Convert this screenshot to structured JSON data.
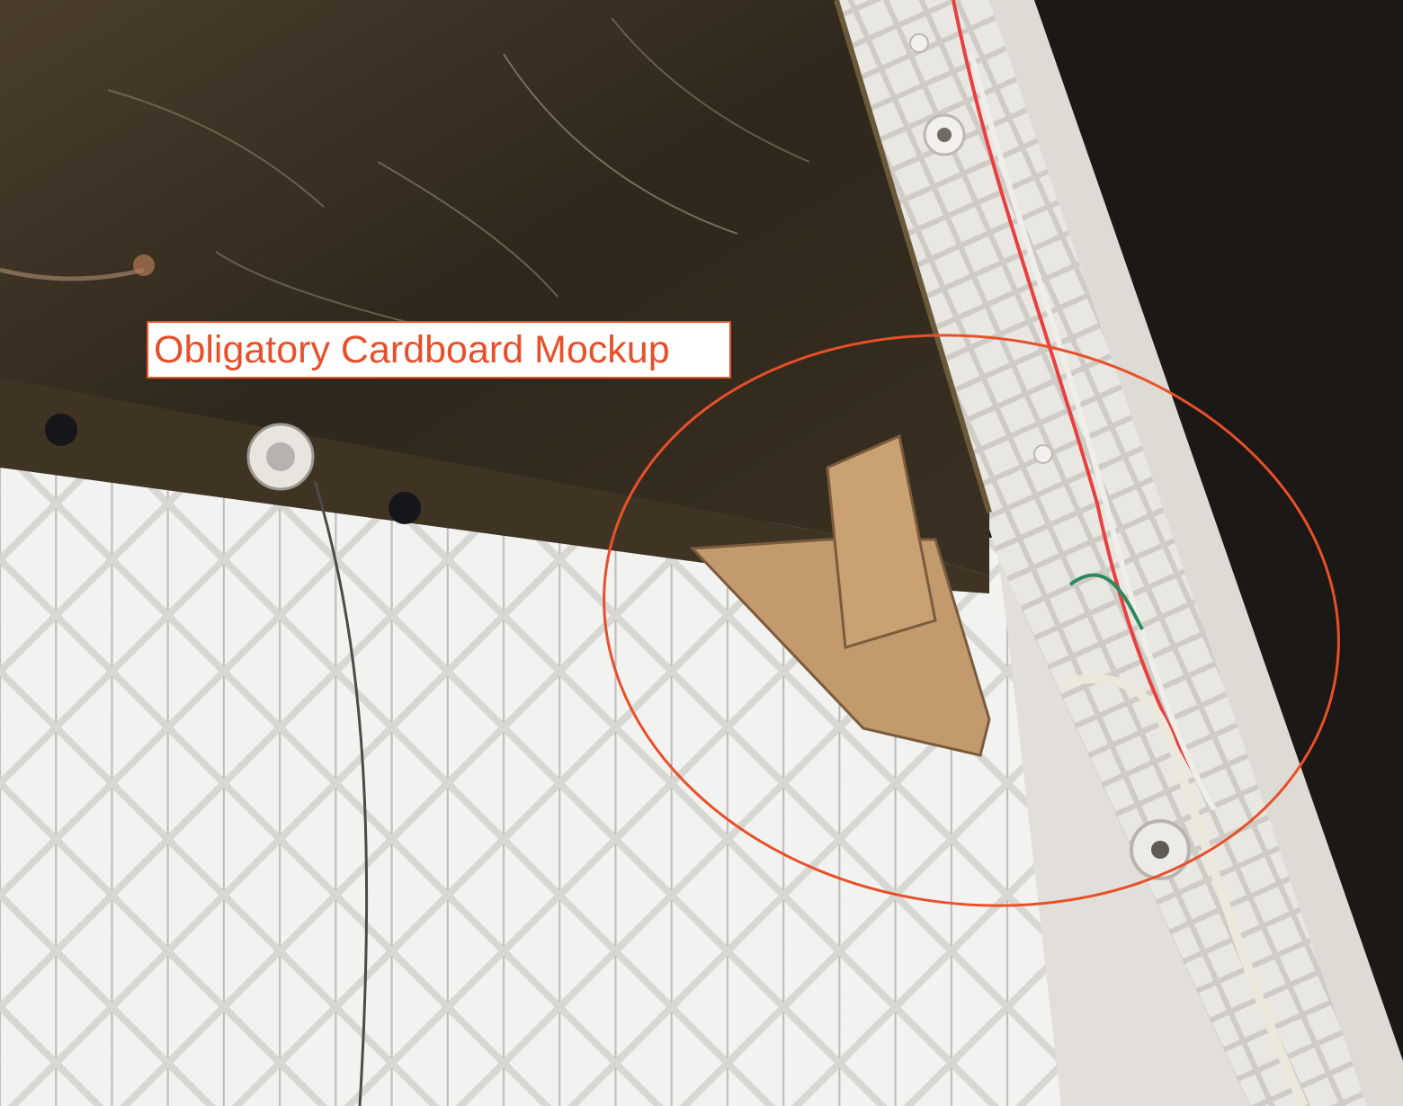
{
  "annotation": {
    "label": "Obligatory Cardboard Mockup",
    "color": "#e8502a"
  },
  "colors": {
    "board": "#2e2519",
    "lattice": "#efefed",
    "rail": "#d9d6d0",
    "cardboard": "#c49a6c",
    "background": "#1a1714"
  }
}
